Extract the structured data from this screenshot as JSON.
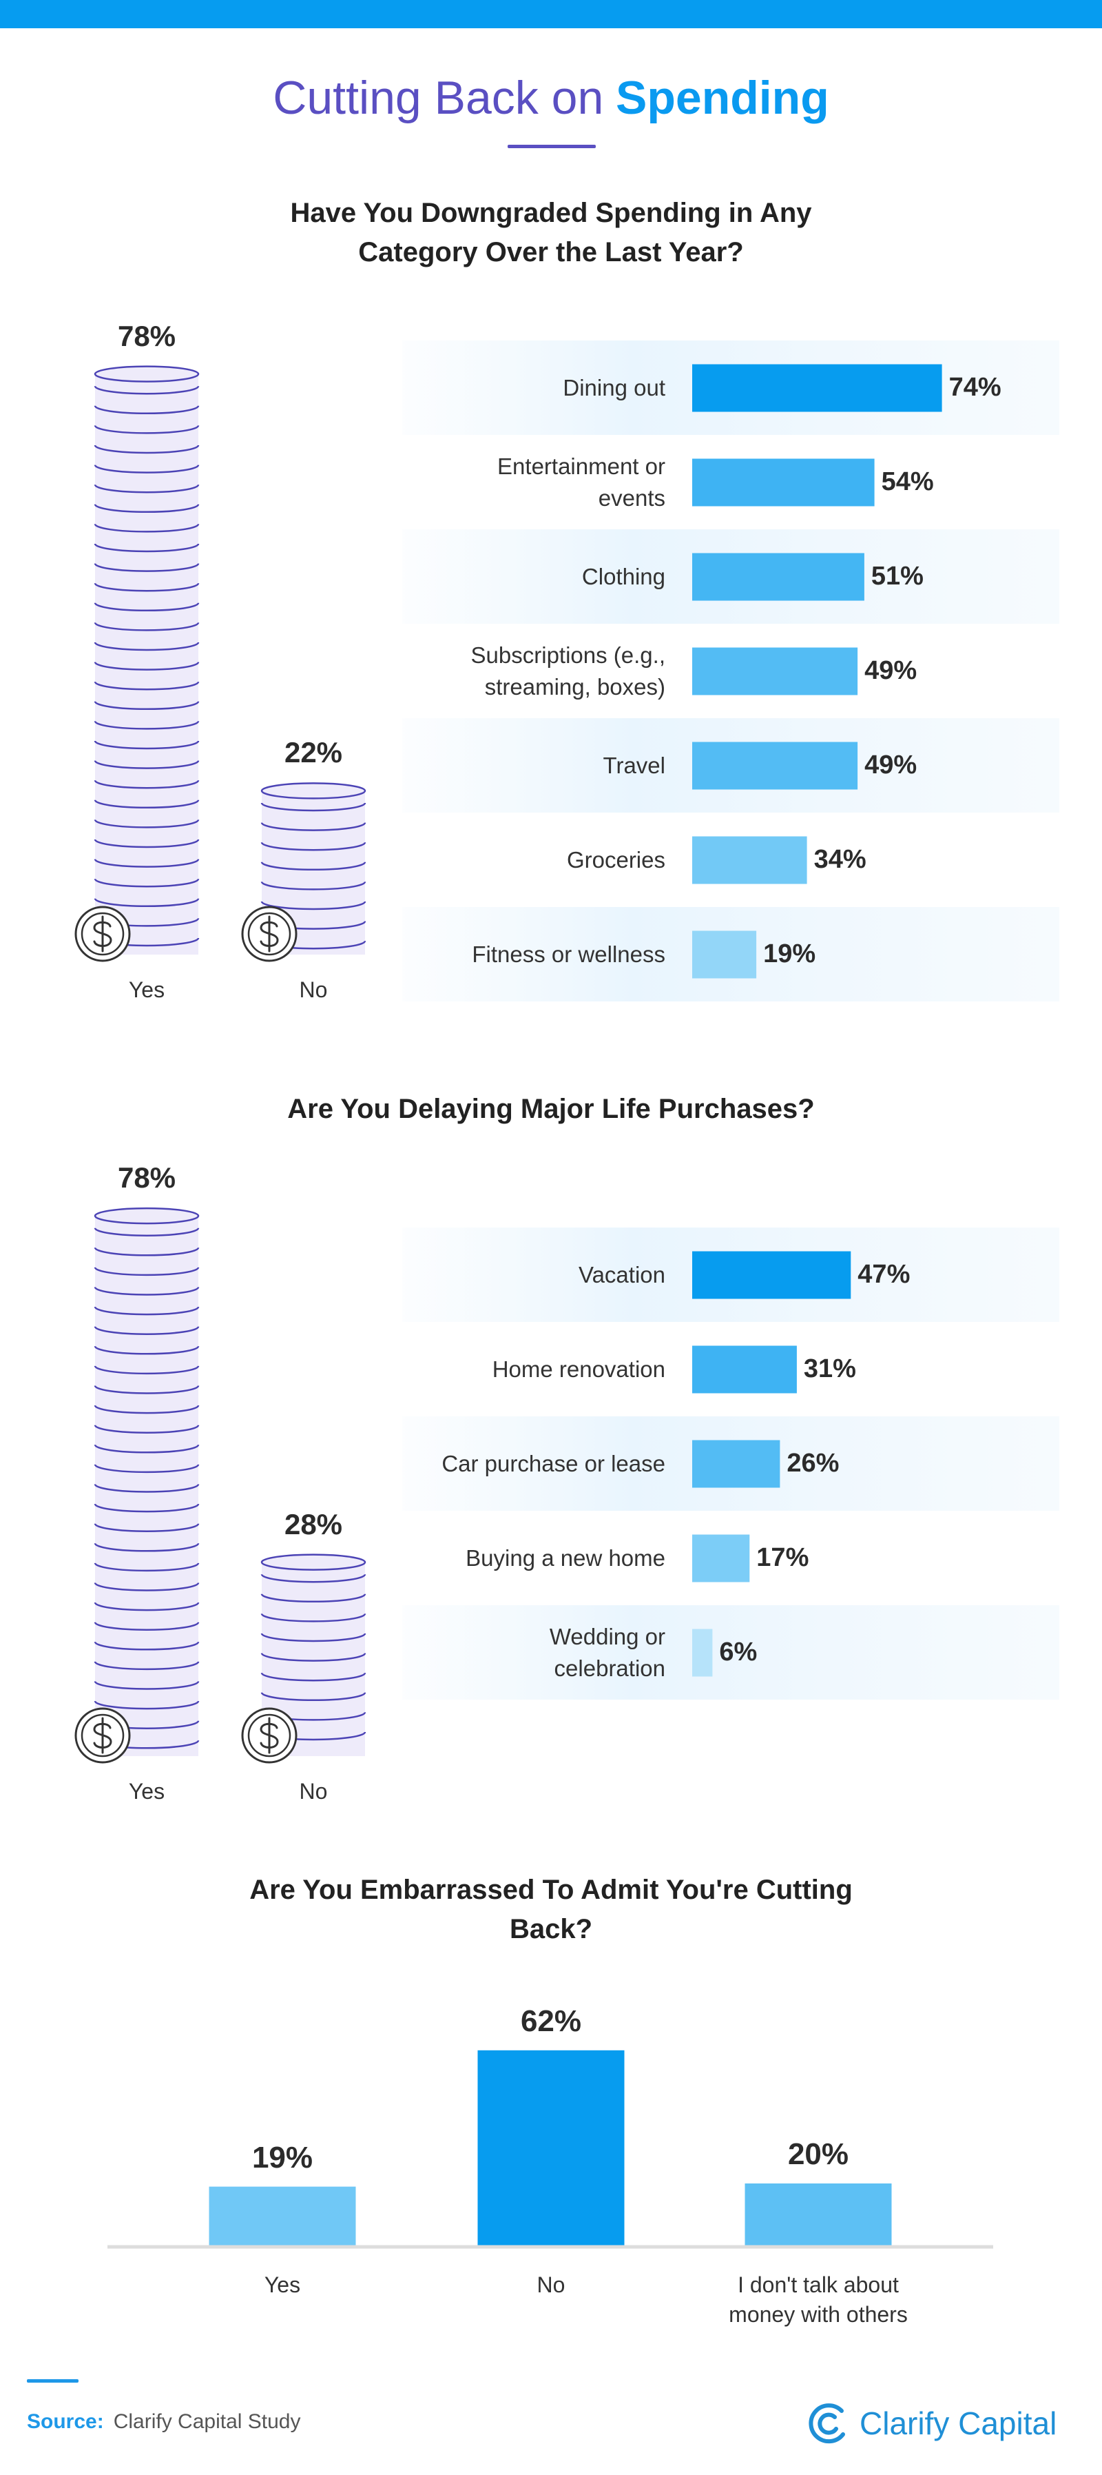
{
  "header": {
    "title_lead": "Cutting Back on",
    "title_accent": "Spending"
  },
  "chart_data": [
    {
      "type": "coin-stack",
      "title": "Have You Downgraded Spending in Any Category Over the Last Year?",
      "categories": [
        "Yes",
        "No"
      ],
      "values": [
        78,
        22
      ],
      "value_labels": [
        "78%",
        "22%"
      ],
      "ylim": [
        0,
        100
      ],
      "color": "#eeebfa",
      "stroke": "#4b43b5"
    },
    {
      "type": "hbar",
      "categories": [
        "Dining out",
        "Entertainment or events",
        "Clothing",
        "Subscriptions (e.g., streaming, boxes)",
        "Travel",
        "Groceries",
        "Fitness or wellness"
      ],
      "values": [
        74,
        54,
        51,
        49,
        49,
        34,
        19
      ],
      "value_labels": [
        "74%",
        "54%",
        "51%",
        "49%",
        "49%",
        "34%",
        "19%"
      ],
      "colors": [
        "#079cef",
        "#3eb3f3",
        "#44b6f3",
        "#53bcf4",
        "#53bcf4",
        "#72c9f6",
        "#93d6f8"
      ],
      "xlim": [
        0,
        100
      ]
    },
    {
      "type": "coin-stack",
      "title": "Are You Delaying Major Life Purchases?",
      "categories": [
        "Yes",
        "No"
      ],
      "values": [
        78,
        28
      ],
      "value_labels": [
        "78%",
        "28%"
      ],
      "ylim": [
        0,
        100
      ],
      "color": "#eeebfa",
      "stroke": "#4b43b5"
    },
    {
      "type": "hbar",
      "categories": [
        "Vacation",
        "Home renovation",
        "Car purchase or lease",
        "Buying a new home",
        "Wedding or celebration"
      ],
      "values": [
        47,
        31,
        26,
        17,
        6
      ],
      "value_labels": [
        "47%",
        "31%",
        "26%",
        "17%",
        "6%"
      ],
      "colors": [
        "#079cef",
        "#3eb3f3",
        "#53bcf4",
        "#7ccdf7",
        "#b6e3fa"
      ],
      "xlim": [
        0,
        100
      ]
    },
    {
      "type": "vbar",
      "title": "Are You Embarrassed To Admit You're Cutting Back?",
      "categories": [
        "Yes",
        "No",
        "I don't talk about money with others"
      ],
      "values": [
        19,
        62,
        20
      ],
      "value_labels": [
        "19%",
        "62%",
        "20%"
      ],
      "colors": [
        "#70c8f6",
        "#079cef",
        "#5dc0f4"
      ],
      "ylim": [
        0,
        100
      ]
    }
  ],
  "footer": {
    "source_label": "Source:",
    "source": "Clarify Capital Study",
    "brand": "Clarify Capital"
  }
}
